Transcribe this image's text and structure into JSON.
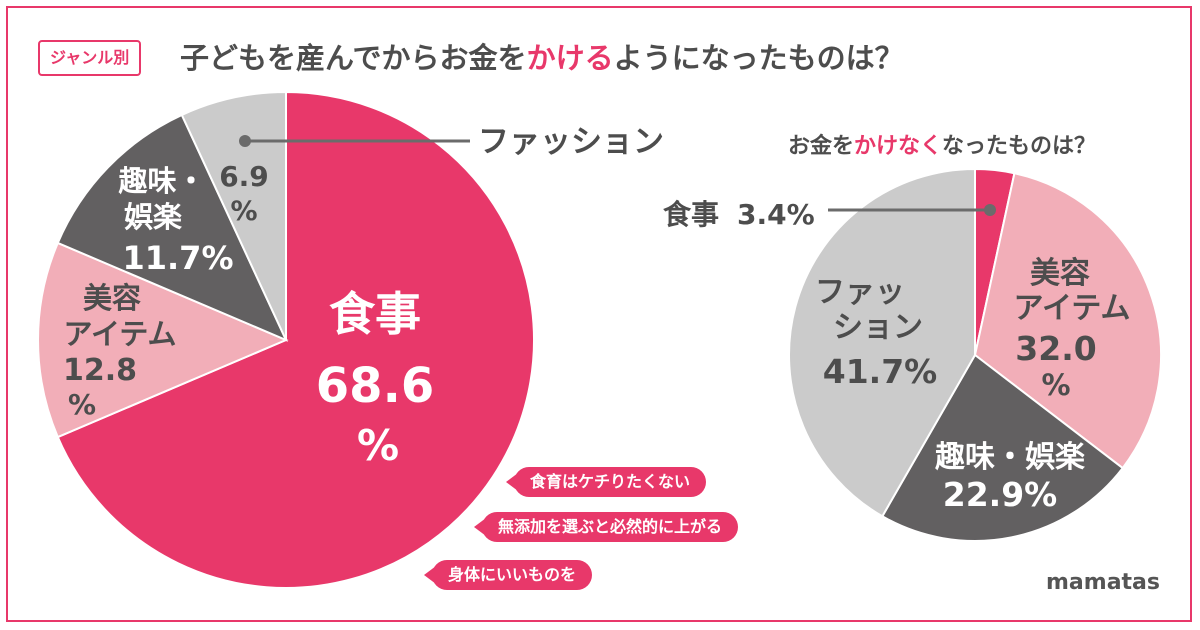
{
  "header": {
    "tag": "ジャンル別",
    "title_pre": "子どもを産んでからお金を",
    "title_hl": "かける",
    "title_post": "ようになったものは？"
  },
  "sub": {
    "pre": "お金を",
    "hl": "かけなく",
    "post": "なったものは？"
  },
  "brand": "mamatas",
  "colors": {
    "pink": "#e8386a",
    "light_pink": "#f2aeb8",
    "dark_gray": "#626061",
    "light_gray": "#cbcbcb"
  },
  "reasons": [
    "食育はケチりたくない",
    "無添加を選ぶと必然的に上がる",
    "身体にいいものを"
  ],
  "chart_data": [
    {
      "type": "pie",
      "slices": [
        {
          "name": "食事",
          "value": 68.6,
          "label": "68.6",
          "unit": "%",
          "color": "#e8386a"
        },
        {
          "name": "美容アイテム",
          "value": 12.8,
          "label": "12.8",
          "unit": "%",
          "color": "#f2aeb8"
        },
        {
          "name": "趣味・娯楽",
          "value": 11.7,
          "label": "11.7%",
          "color": "#626061"
        },
        {
          "name": "ファッション",
          "value": 6.9,
          "label": "6.9",
          "unit": "%",
          "color": "#cbcbcb"
        }
      ]
    },
    {
      "type": "pie",
      "slices": [
        {
          "name": "食事",
          "value": 3.4,
          "label": "3.4%",
          "color": "#e8386a"
        },
        {
          "name": "美容アイテム",
          "value": 32.0,
          "label": "32.0",
          "unit": "%",
          "color": "#f2aeb8"
        },
        {
          "name": "趣味・娯楽",
          "value": 22.9,
          "label": "22.9%",
          "color": "#626061"
        },
        {
          "name": "ファッション",
          "value": 41.7,
          "label": "41.7%",
          "color": "#cbcbcb"
        }
      ]
    }
  ]
}
